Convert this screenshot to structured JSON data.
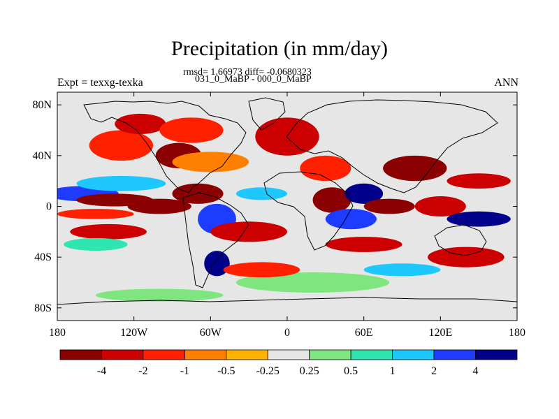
{
  "chart_data": {
    "type": "heatmap",
    "title": "Precipitation (in mm/day)",
    "stats_text": "rmsd= 1.66973 diff= -0.0680323",
    "subtitle": "031_0_MaBP - 000_0_MaBP",
    "left_label": "Expt = texxg-texka",
    "right_label": "ANN",
    "xlim": [
      -180,
      180
    ],
    "ylim": [
      -90,
      90
    ],
    "x_ticks": [
      {
        "value": -180,
        "label": "180"
      },
      {
        "value": -120,
        "label": "120W"
      },
      {
        "value": -60,
        "label": "60W"
      },
      {
        "value": 0,
        "label": "0"
      },
      {
        "value": 60,
        "label": "60E"
      },
      {
        "value": 120,
        "label": "120E"
      },
      {
        "value": 180,
        "label": "180"
      }
    ],
    "y_ticks": [
      {
        "value": 80,
        "label": "80N"
      },
      {
        "value": 40,
        "label": "40N"
      },
      {
        "value": 0,
        "label": "0"
      },
      {
        "value": -40,
        "label": "40S"
      },
      {
        "value": -80,
        "label": "80S"
      }
    ],
    "colorbar": {
      "colors": [
        "#8b0000",
        "#cc0000",
        "#ff2000",
        "#ff7f00",
        "#ffb300",
        "#e6e6e6",
        "#7fe57f",
        "#30e6b0",
        "#1ec8ff",
        "#1e3cff",
        "#00008b"
      ],
      "labels": [
        "-4",
        "-2",
        "-1",
        "-0.5",
        "-0.25",
        "0.25",
        "0.5",
        "1",
        "2",
        "4"
      ]
    },
    "regions": [
      {
        "lon": -160,
        "lat": 10,
        "rx": 28,
        "ry": 6,
        "level": 9
      },
      {
        "lon": -135,
        "lat": 5,
        "rx": 30,
        "ry": 5,
        "level": 0
      },
      {
        "lon": -130,
        "lat": 18,
        "rx": 35,
        "ry": 6,
        "level": 8
      },
      {
        "lon": -100,
        "lat": 0,
        "rx": 25,
        "ry": 6,
        "level": 0
      },
      {
        "lon": -150,
        "lat": -6,
        "rx": 30,
        "ry": 4,
        "level": 2
      },
      {
        "lon": -140,
        "lat": -20,
        "rx": 30,
        "ry": 6,
        "level": 1
      },
      {
        "lon": -150,
        "lat": -30,
        "rx": 25,
        "ry": 5,
        "level": 7
      },
      {
        "lon": -130,
        "lat": 48,
        "rx": 25,
        "ry": 12,
        "level": 2
      },
      {
        "lon": -115,
        "lat": 65,
        "rx": 20,
        "ry": 8,
        "level": 1
      },
      {
        "lon": -75,
        "lat": 60,
        "rx": 25,
        "ry": 10,
        "level": 2
      },
      {
        "lon": -85,
        "lat": 40,
        "rx": 18,
        "ry": 10,
        "level": 0
      },
      {
        "lon": -60,
        "lat": 35,
        "rx": 30,
        "ry": 8,
        "level": 3
      },
      {
        "lon": -70,
        "lat": 10,
        "rx": 20,
        "ry": 8,
        "level": 0
      },
      {
        "lon": -55,
        "lat": -10,
        "rx": 15,
        "ry": 12,
        "level": 9
      },
      {
        "lon": -55,
        "lat": -45,
        "rx": 10,
        "ry": 10,
        "level": 10
      },
      {
        "lon": -30,
        "lat": -20,
        "rx": 30,
        "ry": 8,
        "level": 1
      },
      {
        "lon": -20,
        "lat": 10,
        "rx": 20,
        "ry": 5,
        "level": 8
      },
      {
        "lon": 0,
        "lat": 55,
        "rx": 25,
        "ry": 15,
        "level": 1
      },
      {
        "lon": 30,
        "lat": 30,
        "rx": 20,
        "ry": 10,
        "level": 2
      },
      {
        "lon": 35,
        "lat": 5,
        "rx": 15,
        "ry": 10,
        "level": 0
      },
      {
        "lon": 50,
        "lat": -10,
        "rx": 20,
        "ry": 8,
        "level": 9
      },
      {
        "lon": 60,
        "lat": 10,
        "rx": 15,
        "ry": 8,
        "level": 10
      },
      {
        "lon": 80,
        "lat": 0,
        "rx": 20,
        "ry": 6,
        "level": 0
      },
      {
        "lon": 60,
        "lat": -30,
        "rx": 30,
        "ry": 6,
        "level": 1
      },
      {
        "lon": 100,
        "lat": 30,
        "rx": 25,
        "ry": 10,
        "level": 0
      },
      {
        "lon": 120,
        "lat": 0,
        "rx": 20,
        "ry": 8,
        "level": 1
      },
      {
        "lon": 150,
        "lat": -10,
        "rx": 25,
        "ry": 6,
        "level": 10
      },
      {
        "lon": 150,
        "lat": 20,
        "rx": 25,
        "ry": 6,
        "level": 1
      },
      {
        "lon": 140,
        "lat": -40,
        "rx": 30,
        "ry": 8,
        "level": 1
      },
      {
        "lon": 20,
        "lat": -60,
        "rx": 60,
        "ry": 8,
        "level": 6
      },
      {
        "lon": -100,
        "lat": -70,
        "rx": 50,
        "ry": 5,
        "level": 6
      },
      {
        "lon": -20,
        "lat": -50,
        "rx": 30,
        "ry": 6,
        "level": 2
      },
      {
        "lon": 90,
        "lat": -50,
        "rx": 30,
        "ry": 5,
        "level": 8
      }
    ]
  }
}
